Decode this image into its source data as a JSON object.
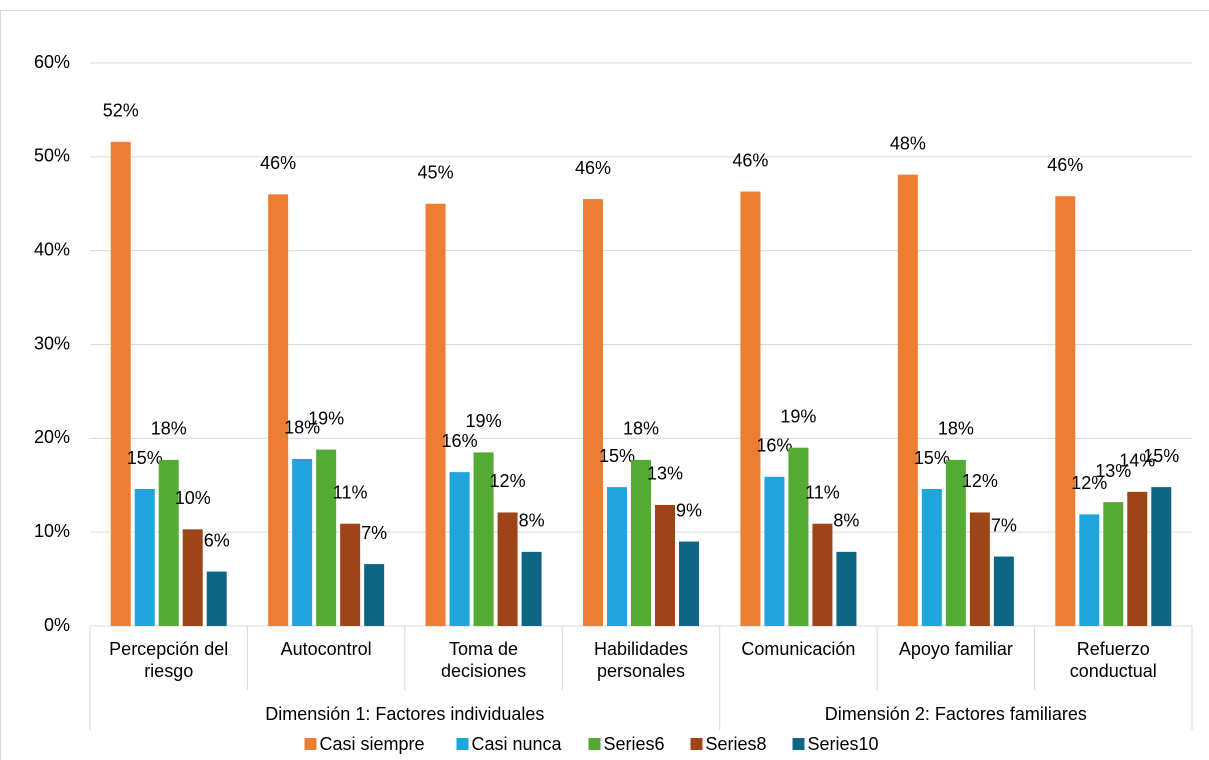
{
  "chart_data": {
    "type": "bar",
    "categories": [
      "Percepción del riesgo",
      "Autocontrol",
      "Toma de decisiones",
      "Habilidades personales",
      "Comunicación",
      "Apoyo familiar",
      "Refuerzo conductual"
    ],
    "groups": [
      {
        "name": "Dimensión 1: Factores individuales",
        "span": 4
      },
      {
        "name": "Dimensión 2: Factores familiares",
        "span": 3
      }
    ],
    "series": [
      {
        "name": "Casi siempre",
        "color": "#ed7d31",
        "values": [
          51.6,
          46.0,
          45.0,
          45.5,
          46.3,
          48.1,
          45.8
        ],
        "value_labels": [
          "52%",
          "46%",
          "45%",
          "46%",
          "46%",
          "48%",
          "46%"
        ]
      },
      {
        "name": "Casi nunca",
        "color": "#1ea6dc",
        "values": [
          14.6,
          17.8,
          16.4,
          14.8,
          15.9,
          14.6,
          11.9
        ],
        "value_labels": [
          "15%",
          "18%",
          "16%",
          "15%",
          "16%",
          "15%",
          "12%"
        ]
      },
      {
        "name": "Series6",
        "color": "#55aa33",
        "values": [
          17.7,
          18.8,
          18.5,
          17.7,
          19.0,
          17.7,
          13.2
        ],
        "value_labels": [
          "18%",
          "19%",
          "19%",
          "18%",
          "19%",
          "18%",
          "13%"
        ]
      },
      {
        "name": "Series8",
        "color": "#9e4517",
        "values": [
          10.3,
          10.9,
          12.1,
          12.9,
          10.9,
          12.1,
          14.3
        ],
        "value_labels": [
          "10%",
          "11%",
          "12%",
          "13%",
          "11%",
          "12%",
          "14%"
        ]
      },
      {
        "name": "Series10",
        "color": "#0e6584",
        "values": [
          5.8,
          6.6,
          7.9,
          9.0,
          7.9,
          7.4,
          14.8
        ],
        "value_labels": [
          "6%",
          "7%",
          "8%",
          "9%",
          "8%",
          "7%",
          "15%"
        ]
      }
    ],
    "ylim": [
      0,
      60
    ],
    "yticks": [
      {
        "value": 0,
        "label": "0%"
      },
      {
        "value": 10,
        "label": "10%"
      },
      {
        "value": 20,
        "label": "20%"
      },
      {
        "value": 30,
        "label": "30%"
      },
      {
        "value": 40,
        "label": "40%"
      },
      {
        "value": 50,
        "label": "50%"
      },
      {
        "value": 60,
        "label": "60%"
      }
    ],
    "grid": true,
    "legend": "bottom"
  }
}
